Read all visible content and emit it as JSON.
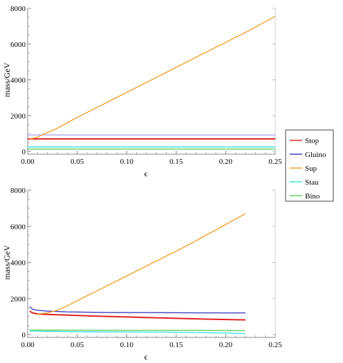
{
  "chart_data": [
    {
      "type": "line",
      "xlabel": "ϵ",
      "ylabel": "mass/GeV",
      "xlim": [
        0,
        0.25
      ],
      "ylim": [
        0,
        8000
      ],
      "xticks": [
        "0.00",
        "0.05",
        "0.10",
        "0.15",
        "0.20",
        "0.25"
      ],
      "yticks": [
        "0",
        "2000",
        "4000",
        "6000",
        "8000"
      ],
      "series": [
        {
          "name": "Stop",
          "color": "#e02020",
          "x": [
            0,
            0.25
          ],
          "y": [
            700,
            700
          ]
        },
        {
          "name": "Gluino",
          "color": "#a8a8f0",
          "x": [
            0,
            0.25
          ],
          "y": [
            920,
            920
          ]
        },
        {
          "name": "Sup",
          "color": "#f5a030",
          "x": [
            0.002,
            0.01,
            0.02,
            0.03,
            0.05,
            0.075,
            0.1,
            0.125,
            0.15,
            0.175,
            0.2,
            0.225,
            0.25
          ],
          "y": [
            700,
            800,
            1050,
            1300,
            1900,
            2600,
            3300,
            4000,
            4700,
            5400,
            6100,
            6800,
            7550
          ]
        },
        {
          "name": "Stau",
          "color": "#40e0e0",
          "x": [
            0,
            0.25
          ],
          "y": [
            250,
            250
          ]
        },
        {
          "name": "Bino",
          "color": "#60d060",
          "x": [
            0,
            0.25
          ],
          "y": [
            130,
            130
          ]
        }
      ]
    },
    {
      "type": "line",
      "xlabel": "ϵ",
      "ylabel": "mass/GeV",
      "xlim": [
        0,
        0.25
      ],
      "ylim": [
        0,
        8000
      ],
      "xticks": [
        "0.00",
        "0.05",
        "0.10",
        "0.15",
        "0.20",
        "0.25"
      ],
      "yticks": [
        "0",
        "2000",
        "4000",
        "6000",
        "8000"
      ],
      "series": [
        {
          "name": "Stop",
          "color": "#e02020",
          "x": [
            0.002,
            0.005,
            0.01,
            0.02,
            0.04,
            0.06,
            0.08,
            0.1,
            0.12,
            0.14,
            0.16,
            0.18,
            0.2,
            0.22
          ],
          "y": [
            1300,
            1200,
            1150,
            1120,
            1080,
            1040,
            1010,
            980,
            950,
            920,
            890,
            860,
            840,
            820
          ]
        },
        {
          "name": "Gluino",
          "color": "#4040c0",
          "x": [
            0.002,
            0.005,
            0.01,
            0.02,
            0.04,
            0.08,
            0.12,
            0.16,
            0.2,
            0.22
          ],
          "y": [
            1550,
            1400,
            1350,
            1300,
            1260,
            1230,
            1220,
            1210,
            1200,
            1200
          ]
        },
        {
          "name": "Sup",
          "color": "#f5a030",
          "x": [
            0.01,
            0.02,
            0.03,
            0.04,
            0.06,
            0.08,
            0.1,
            0.12,
            0.14,
            0.16,
            0.18,
            0.2,
            0.22
          ],
          "y": [
            1150,
            1200,
            1350,
            1600,
            2150,
            2700,
            3250,
            3800,
            4350,
            4900,
            5500,
            6100,
            6700
          ]
        },
        {
          "name": "Stau",
          "color": "#40e0e0",
          "x": [
            0.002,
            0.02,
            0.05,
            0.1,
            0.15,
            0.2,
            0.22
          ],
          "y": [
            200,
            180,
            160,
            150,
            130,
            90,
            50
          ]
        },
        {
          "name": "Bino",
          "color": "#60d060",
          "x": [
            0.002,
            0.02,
            0.05,
            0.1,
            0.15,
            0.2,
            0.22
          ],
          "y": [
            260,
            250,
            250,
            240,
            240,
            230,
            220
          ]
        }
      ]
    }
  ],
  "legend": [
    {
      "label": "Stop",
      "color": "#e02020"
    },
    {
      "label": "Gluino",
      "color": "#4040c0"
    },
    {
      "label": "Sup",
      "color": "#f5a030"
    },
    {
      "label": "Stau",
      "color": "#40e0e0"
    },
    {
      "label": "Bino",
      "color": "#60d060"
    }
  ]
}
